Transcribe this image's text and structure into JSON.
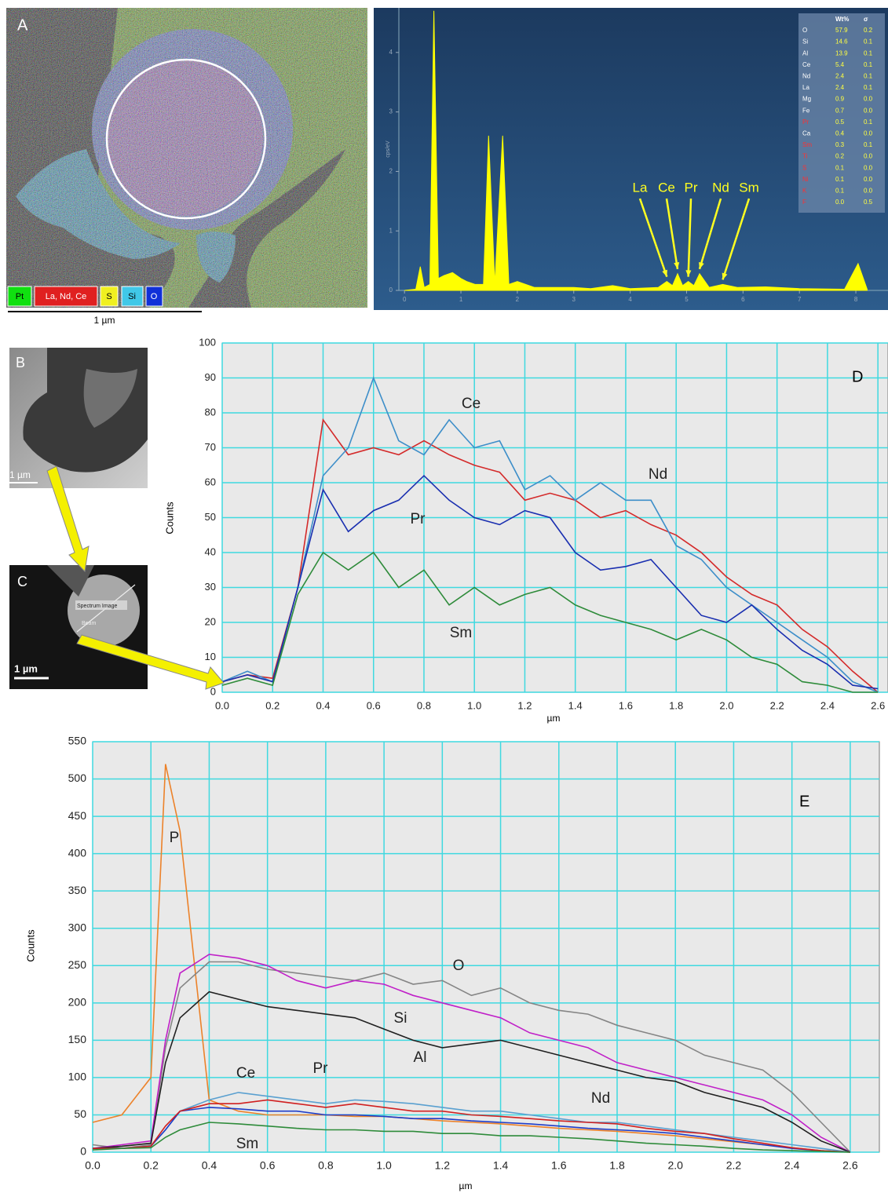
{
  "panels": {
    "a": {
      "label": "A",
      "legend": [
        "Pt",
        "La, Nd, Ce",
        "S",
        "Si",
        "O"
      ],
      "scale": "1 µm"
    },
    "b": {
      "label": "B",
      "scale": "1 µm"
    },
    "c": {
      "label": "C",
      "scale": "1 µm",
      "overlay": [
        "Spectrum Image",
        "Beam"
      ]
    }
  },
  "table": {
    "header": [
      "Wt%",
      "σ"
    ],
    "rows": [
      [
        "O",
        "57.9",
        "0.2"
      ],
      [
        "Si",
        "14.6",
        "0.1"
      ],
      [
        "Al",
        "13.9",
        "0.1"
      ],
      [
        "Ce",
        "5.4",
        "0.1"
      ],
      [
        "Nd",
        "2.4",
        "0.1"
      ],
      [
        "La",
        "2.4",
        "0.1"
      ],
      [
        "Mg",
        "0.9",
        "0.0"
      ],
      [
        "Fe",
        "0.7",
        "0.0"
      ],
      [
        "Pr",
        "0.5",
        "0.1"
      ],
      [
        "Ca",
        "0.4",
        "0.0"
      ],
      [
        "Sm",
        "0.3",
        "0.1"
      ],
      [
        "Ti",
        "0.2",
        "0.0"
      ],
      [
        "S",
        "0.1",
        "0.0"
      ],
      [
        "Ni",
        "0.1",
        "0.0"
      ],
      [
        "K",
        "0.1",
        "0.0"
      ],
      [
        "F",
        "0.0",
        "0.5"
      ]
    ]
  },
  "chart_data": [
    {
      "type": "area",
      "ylabel": "cps/eV",
      "color": "#ffff00",
      "grid": false,
      "x": [
        0,
        0.2,
        0.28,
        0.35,
        0.45,
        0.52,
        0.6,
        0.7,
        0.85,
        1.0,
        1.1,
        1.25,
        1.4,
        1.49,
        1.6,
        1.74,
        1.85,
        2.0,
        2.3,
        3.0,
        3.3,
        3.69,
        4.0,
        4.5,
        4.65,
        4.75,
        4.84,
        4.93,
        5.03,
        5.13,
        5.23,
        5.4,
        5.64,
        5.9,
        6.4,
        7.0,
        7.8,
        8.04,
        8.2
      ],
      "series": [
        {
          "values": [
            0,
            0.02,
            0.4,
            0.05,
            0.1,
            4.7,
            0.2,
            0.25,
            0.3,
            0.2,
            0.15,
            0.1,
            0.1,
            2.6,
            0.1,
            2.6,
            0.1,
            0.15,
            0.05,
            0.05,
            0.03,
            0.08,
            0.03,
            0.05,
            0.15,
            0.08,
            0.28,
            0.08,
            0.15,
            0.08,
            0.28,
            0.05,
            0.1,
            0.05,
            0.06,
            0.03,
            0.02,
            0.45,
            0.02
          ],
          "color": "#ffff00"
        }
      ],
      "annotations": [
        "La",
        "Ce",
        "Pr",
        "Nd",
        "Sm"
      ],
      "xlim": [
        -0.1,
        8.57
      ],
      "ylim": [
        0,
        4.75
      ],
      "xticks": [
        0,
        1,
        2,
        3,
        4,
        5,
        6,
        7,
        8
      ],
      "yticks": [
        0,
        1,
        2,
        3,
        4
      ]
    },
    {
      "type": "line",
      "label": "D",
      "xlabel": "µm",
      "ylabel": "Counts",
      "grid": true,
      "grid_color": "#3fd9e0",
      "x": [
        0,
        0.1,
        0.2,
        0.3,
        0.4,
        0.5,
        0.6,
        0.7,
        0.8,
        0.9,
        1.0,
        1.1,
        1.2,
        1.3,
        1.4,
        1.5,
        1.6,
        1.7,
        1.8,
        1.9,
        2.0,
        2.1,
        2.2,
        2.3,
        2.4,
        2.5,
        2.6
      ],
      "series": [
        {
          "name": "Nd",
          "color": "#d42a2a",
          "values": [
            3,
            5,
            4,
            30,
            78,
            68,
            70,
            68,
            72,
            68,
            65,
            63,
            55,
            57,
            55,
            50,
            52,
            48,
            45,
            40,
            33,
            28,
            25,
            18,
            13,
            6,
            0
          ]
        },
        {
          "name": "Ce",
          "color": "#3d8ec9",
          "values": [
            3,
            6,
            3,
            30,
            62,
            70,
            90,
            72,
            68,
            78,
            70,
            72,
            58,
            62,
            55,
            60,
            55,
            55,
            42,
            38,
            30,
            25,
            20,
            15,
            10,
            3,
            0
          ]
        },
        {
          "name": "Pr",
          "color": "#1a2fb0",
          "values": [
            3,
            5,
            3,
            30,
            58,
            46,
            52,
            55,
            62,
            55,
            50,
            48,
            52,
            50,
            40,
            35,
            36,
            38,
            30,
            22,
            20,
            25,
            18,
            12,
            8,
            2,
            1
          ]
        },
        {
          "name": "Sm",
          "color": "#2e8b3a",
          "values": [
            2,
            4,
            2,
            28,
            40,
            35,
            40,
            30,
            35,
            25,
            30,
            25,
            28,
            30,
            25,
            22,
            20,
            18,
            15,
            18,
            15,
            10,
            8,
            3,
            2,
            0,
            0
          ]
        }
      ],
      "xlim": [
        0,
        2.64
      ],
      "ylim": [
        0,
        100
      ],
      "xticks": [
        {
          "value": 0,
          "label": "0.0"
        },
        0.2,
        0.4,
        0.6,
        0.8,
        {
          "value": 1,
          "label": "1.0"
        },
        1.2,
        1.4,
        1.6,
        1.8,
        {
          "value": 2,
          "label": "2.0"
        },
        2.2,
        2.4,
        2.6
      ],
      "yticks": [
        0,
        10,
        20,
        30,
        40,
        50,
        60,
        70,
        80,
        90,
        100
      ]
    },
    {
      "type": "line",
      "label": "E",
      "xlabel": "µm",
      "ylabel": "Counts",
      "grid": true,
      "grid_color": "#3fd9e0",
      "x": [
        0,
        0.1,
        0.2,
        0.25,
        0.3,
        0.4,
        0.5,
        0.6,
        0.7,
        0.8,
        0.9,
        1.0,
        1.1,
        1.2,
        1.3,
        1.4,
        1.5,
        1.6,
        1.7,
        1.8,
        1.9,
        2.0,
        2.1,
        2.2,
        2.3,
        2.4,
        2.5,
        2.6
      ],
      "series": [
        {
          "name": "P",
          "color": "#ec822a",
          "values": [
            40,
            50,
            100,
            520,
            430,
            70,
            55,
            50,
            50,
            50,
            48,
            48,
            45,
            42,
            40,
            38,
            35,
            32,
            30,
            28,
            25,
            22,
            18,
            14,
            10,
            6,
            2,
            0
          ]
        },
        {
          "name": "O",
          "color": "#858585",
          "values": [
            10,
            5,
            10,
            140,
            220,
            255,
            255,
            245,
            240,
            235,
            230,
            240,
            225,
            230,
            210,
            220,
            200,
            190,
            185,
            170,
            160,
            150,
            130,
            120,
            110,
            80,
            40,
            0
          ]
        },
        {
          "name": "Si",
          "color": "#c020c8",
          "values": [
            5,
            10,
            15,
            150,
            240,
            265,
            260,
            250,
            230,
            220,
            230,
            225,
            210,
            200,
            190,
            180,
            160,
            150,
            140,
            120,
            110,
            100,
            90,
            80,
            70,
            50,
            20,
            0
          ]
        },
        {
          "name": "Al",
          "color": "#202020",
          "values": [
            5,
            8,
            12,
            120,
            180,
            215,
            205,
            195,
            190,
            185,
            180,
            165,
            150,
            140,
            145,
            150,
            140,
            130,
            120,
            110,
            100,
            95,
            80,
            70,
            60,
            40,
            15,
            0
          ]
        },
        {
          "name": "Ce",
          "color": "#5aa0d0",
          "values": [
            5,
            5,
            8,
            30,
            55,
            70,
            80,
            75,
            70,
            65,
            70,
            68,
            65,
            60,
            55,
            55,
            50,
            45,
            40,
            40,
            35,
            30,
            25,
            20,
            15,
            10,
            5,
            0
          ]
        },
        {
          "name": "Pr",
          "color": "#1e3cc8",
          "values": [
            5,
            5,
            8,
            30,
            55,
            60,
            58,
            55,
            55,
            50,
            50,
            48,
            45,
            45,
            42,
            40,
            38,
            35,
            32,
            30,
            28,
            25,
            20,
            15,
            10,
            5,
            2,
            0
          ]
        },
        {
          "name": "Nd",
          "color": "#d02020",
          "values": [
            5,
            5,
            8,
            35,
            55,
            65,
            65,
            70,
            65,
            60,
            65,
            60,
            55,
            55,
            50,
            48,
            45,
            42,
            40,
            38,
            32,
            28,
            25,
            18,
            12,
            6,
            2,
            0
          ]
        },
        {
          "name": "Sm",
          "color": "#2e8b3a",
          "values": [
            3,
            5,
            6,
            20,
            30,
            40,
            38,
            35,
            32,
            30,
            30,
            28,
            28,
            25,
            25,
            22,
            22,
            20,
            18,
            15,
            12,
            10,
            8,
            5,
            3,
            2,
            1,
            0
          ]
        }
      ],
      "xlim": [
        0,
        2.7
      ],
      "ylim": [
        0,
        550
      ],
      "xticks": [
        {
          "value": 0,
          "label": "0.0"
        },
        0.2,
        0.4,
        0.6,
        0.8,
        {
          "value": 1,
          "label": "1.0"
        },
        1.2,
        1.4,
        1.6,
        1.8,
        {
          "value": 2,
          "label": "2.0"
        },
        2.2,
        2.4,
        2.6
      ],
      "yticks": [
        0,
        50,
        100,
        150,
        200,
        250,
        300,
        350,
        400,
        450,
        500,
        550
      ]
    }
  ]
}
